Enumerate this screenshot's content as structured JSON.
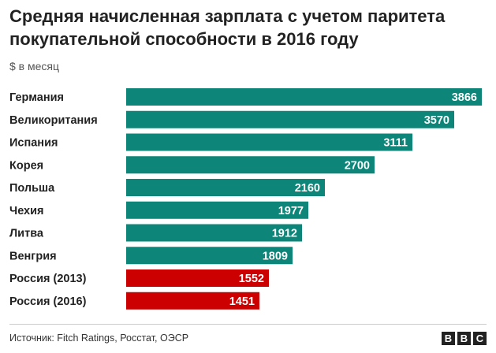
{
  "header": {
    "title": "Средняя начисленная зарплата с учетом паритета покупательной способности в 2016 году",
    "subtitle": "$ в месяц"
  },
  "footer": {
    "source": "Источник: Fitch Ratings, Росстат, ОЭСР",
    "logo_letters": [
      "B",
      "B",
      "C"
    ]
  },
  "colors": {
    "default_bar": "#0e8579",
    "highlight_bar": "#cc0000",
    "label_text": "#ffffff"
  },
  "chart_data": {
    "type": "bar",
    "orientation": "horizontal",
    "title": "Средняя начисленная зарплата с учетом паритета покупательной способности в 2016 году",
    "subtitle": "$ в месяц",
    "categories": [
      "Германия",
      "Великоритания",
      "Испания",
      "Корея",
      "Польша",
      "Чехия",
      "Литва",
      "Венгрия",
      "Россия (2013)",
      "Россия (2016)"
    ],
    "values": [
      3866,
      3570,
      3111,
      2700,
      2160,
      1977,
      1912,
      1809,
      1552,
      1451
    ],
    "highlight": [
      false,
      false,
      false,
      false,
      false,
      false,
      false,
      false,
      true,
      true
    ],
    "xlim": [
      0,
      3866
    ],
    "grid": false,
    "legend": "none"
  }
}
